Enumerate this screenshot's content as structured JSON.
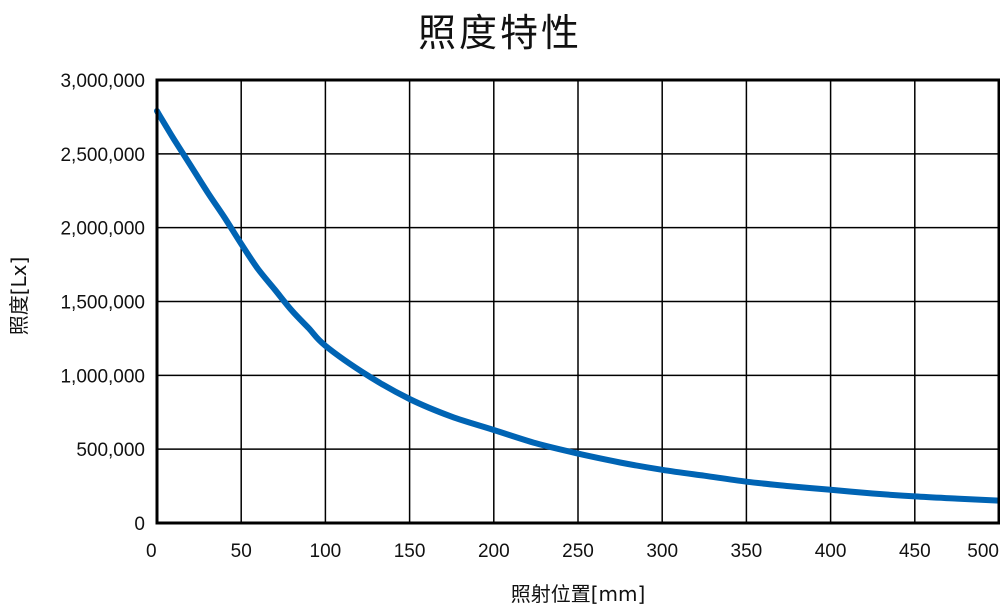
{
  "chart_data": {
    "type": "line",
    "title": "照度特性",
    "xlabel": "照射位置[mm]",
    "ylabel": "照度[Lx]",
    "xlim": [
      0,
      500
    ],
    "ylim": [
      0,
      3000000
    ],
    "x_ticks": [
      "0",
      "50",
      "100",
      "150",
      "200",
      "250",
      "300",
      "350",
      "400",
      "450",
      "500"
    ],
    "y_ticks": [
      "0",
      "500,000",
      "1,000,000",
      "1,500,000",
      "2,000,000",
      "2,500,000",
      "3,000,000"
    ],
    "grid": true,
    "series_color": "#0064b4",
    "series": [
      {
        "x": [
          0,
          2,
          10,
          20,
          30,
          40,
          50,
          60,
          70,
          80,
          90,
          100,
          125,
          150,
          175,
          200,
          225,
          250,
          275,
          300,
          325,
          350,
          375,
          400,
          425,
          450,
          475,
          500
        ],
        "y": [
          2790000,
          2750000,
          2600000,
          2420000,
          2240000,
          2070000,
          1890000,
          1720000,
          1580000,
          1440000,
          1320000,
          1200000,
          1000000,
          840000,
          720000,
          630000,
          540000,
          470000,
          410000,
          360000,
          320000,
          280000,
          250000,
          225000,
          200000,
          180000,
          165000,
          152000
        ]
      }
    ]
  }
}
